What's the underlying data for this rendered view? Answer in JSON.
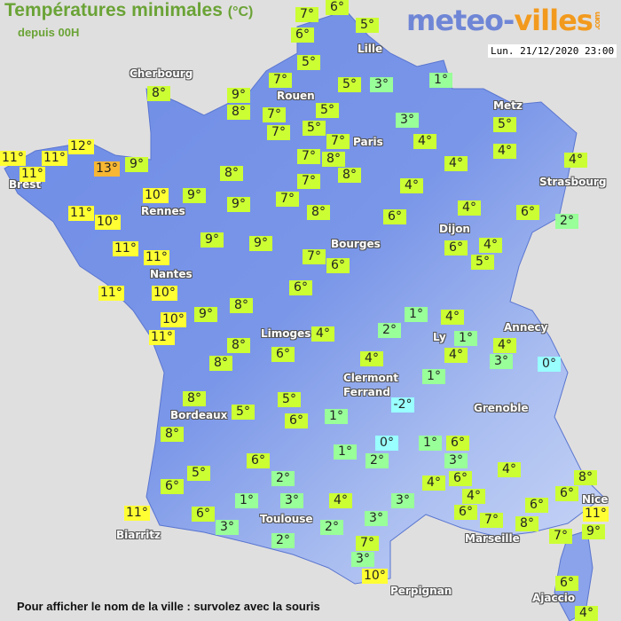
{
  "header": {
    "title": "Températures minimales",
    "unit": "(°C)",
    "subtitle": "depuis 00H"
  },
  "logo": {
    "part1": "meteo-",
    "part2": "villes",
    "suffix": ".com"
  },
  "timestamp": "Lun. 21/12/2020 23:00",
  "footer": "Pour afficher le nom de la ville : survolez avec la souris",
  "colors": {
    "land": "#6e8ce6",
    "temp_hot": "#f7b733",
    "temp_warm": "#ffff33",
    "temp_mild": "#ccff33",
    "temp_cool": "#99ff99",
    "temp_cold": "#99ffff"
  },
  "cities": [
    "Cherbourg",
    "Rouen",
    "Lille",
    "Paris",
    "Metz",
    "Strasbourg",
    "Brest",
    "Rennes",
    "Dijon",
    "Bourges",
    "Nantes",
    "Limoges",
    "Annecy",
    "Ly",
    "Clermont",
    "Ferrand",
    "Grenoble",
    "Bordeaux",
    "Toulouse",
    "Nice",
    "Biarritz",
    "Marseille",
    "Perpignan",
    "Ajaccio"
  ],
  "temperatures": [
    7,
    6,
    6,
    5,
    5,
    7,
    5,
    3,
    1,
    8,
    9,
    8,
    7,
    5,
    7,
    5,
    7,
    3,
    5,
    4,
    12,
    11,
    11,
    11,
    13,
    9,
    8,
    7,
    8,
    8,
    7,
    4,
    4,
    4,
    10,
    9,
    9,
    7,
    8,
    4,
    11,
    10,
    6,
    4,
    6,
    2,
    11,
    11,
    9,
    9,
    7,
    6,
    6,
    4,
    5,
    11,
    10,
    6,
    10,
    9,
    8,
    11,
    1,
    4,
    8,
    4,
    2,
    1,
    4,
    8,
    6,
    4,
    4,
    3,
    0,
    1,
    8,
    5,
    5,
    6,
    -2,
    1,
    8,
    0,
    1,
    6,
    1,
    2,
    3,
    6,
    2,
    5,
    6,
    4,
    6,
    4,
    8,
    6,
    4,
    1,
    3,
    4,
    3,
    6,
    6,
    11,
    6,
    7,
    11,
    3,
    3,
    2,
    8,
    9,
    2,
    7,
    7,
    3,
    10,
    6,
    4
  ]
}
